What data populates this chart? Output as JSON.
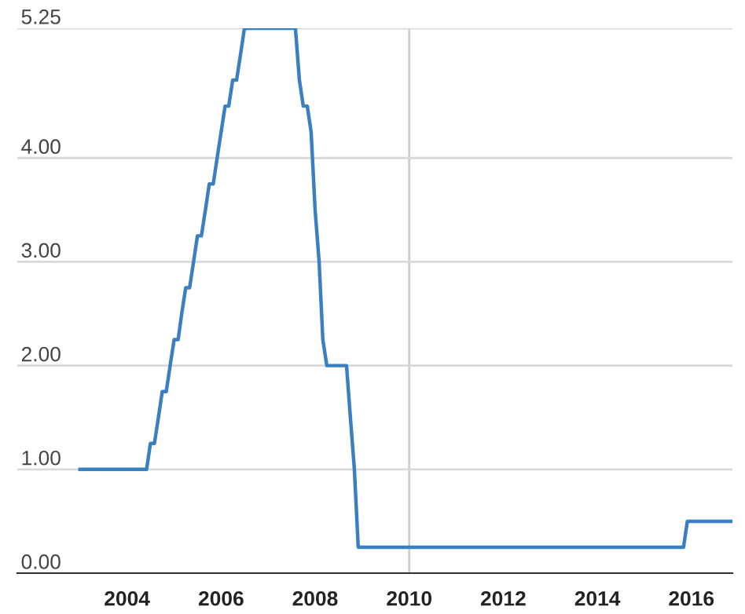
{
  "chart_data": {
    "type": "line",
    "x": [
      "2003-01",
      "2004-06",
      "2004-07",
      "2004-08",
      "2004-09",
      "2004-10",
      "2004-11",
      "2004-12",
      "2005-01",
      "2005-02",
      "2005-03",
      "2005-04",
      "2005-05",
      "2005-06",
      "2005-07",
      "2005-08",
      "2005-09",
      "2005-10",
      "2005-11",
      "2005-12",
      "2006-01",
      "2006-02",
      "2006-03",
      "2006-04",
      "2006-05",
      "2006-06",
      "2006-07",
      "2007-08",
      "2007-09",
      "2007-10",
      "2007-11",
      "2007-12",
      "2008-01",
      "2008-02",
      "2008-03",
      "2008-04",
      "2008-09",
      "2008-10",
      "2008-11",
      "2008-12",
      "2015-11",
      "2015-12",
      "2016-11-15"
    ],
    "series": [
      {
        "color": "#3a7fc1",
        "values": [
          1.0,
          1.0,
          1.25,
          1.25,
          1.5,
          1.75,
          1.75,
          2.0,
          2.25,
          2.25,
          2.5,
          2.75,
          2.75,
          3.0,
          3.25,
          3.25,
          3.5,
          3.75,
          3.75,
          4.0,
          4.25,
          4.5,
          4.5,
          4.75,
          4.75,
          5.0,
          5.25,
          5.25,
          4.75,
          4.5,
          4.5,
          4.25,
          3.5,
          3.0,
          2.25,
          2.0,
          2.0,
          1.5,
          1.0,
          0.25,
          0.25,
          0.5,
          0.5
        ]
      }
    ],
    "xlim": [
      "2001-09-01",
      "2016-11-15"
    ],
    "xticks": [
      {
        "value": "2004-01-01",
        "label": "2004"
      },
      {
        "value": "2006-01-01",
        "label": "2006"
      },
      {
        "value": "2008-01-01",
        "label": "2008"
      },
      {
        "value": "2010-01-01",
        "label": "2010"
      },
      {
        "value": "2012-01-01",
        "label": "2012"
      },
      {
        "value": "2014-01-01",
        "label": "2014"
      },
      {
        "value": "2016-01-01",
        "label": "2016"
      }
    ],
    "ylim": [
      0,
      5.25
    ],
    "yticks": [
      {
        "value": 0,
        "label": "0.00"
      },
      {
        "value": 1,
        "label": "1.00"
      },
      {
        "value": 2,
        "label": "2.00"
      },
      {
        "value": 3,
        "label": "3.00"
      },
      {
        "value": 4,
        "label": "4.00"
      },
      {
        "value": 5.25,
        "label": "5.25"
      }
    ],
    "ref_lines": [
      {
        "axis": "x",
        "value": "2010-01-01",
        "color": "#cccccc"
      }
    ],
    "grid": "y",
    "legend": false,
    "marker": "none",
    "line_style": "solid"
  }
}
